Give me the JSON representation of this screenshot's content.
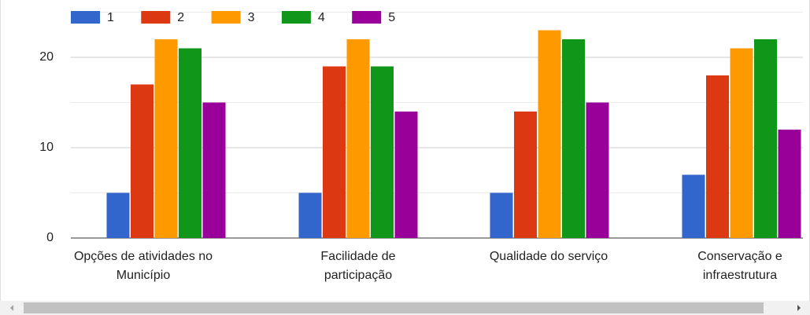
{
  "chart_data": {
    "type": "bar",
    "categories": [
      [
        "Opções de atividades no",
        "Município"
      ],
      [
        "Facilidade de",
        "participação"
      ],
      [
        "Qualidade do serviço"
      ],
      [
        "Conservação e",
        "infraestrutura"
      ]
    ],
    "series": [
      {
        "name": "1",
        "color": "#3366cc",
        "values": [
          5,
          5,
          5,
          7
        ]
      },
      {
        "name": "2",
        "color": "#dc3912",
        "values": [
          17,
          19,
          14,
          18
        ]
      },
      {
        "name": "3",
        "color": "#ff9900",
        "values": [
          22,
          22,
          23,
          21
        ]
      },
      {
        "name": "4",
        "color": "#109618",
        "values": [
          21,
          19,
          22,
          22
        ]
      },
      {
        "name": "5",
        "color": "#990099",
        "values": [
          15,
          14,
          15,
          12
        ]
      }
    ],
    "ylim": [
      0,
      25
    ],
    "yticks": [
      0,
      10,
      20
    ],
    "minor_yticks": [
      5,
      15,
      25
    ],
    "grid": true,
    "legend": "top"
  }
}
